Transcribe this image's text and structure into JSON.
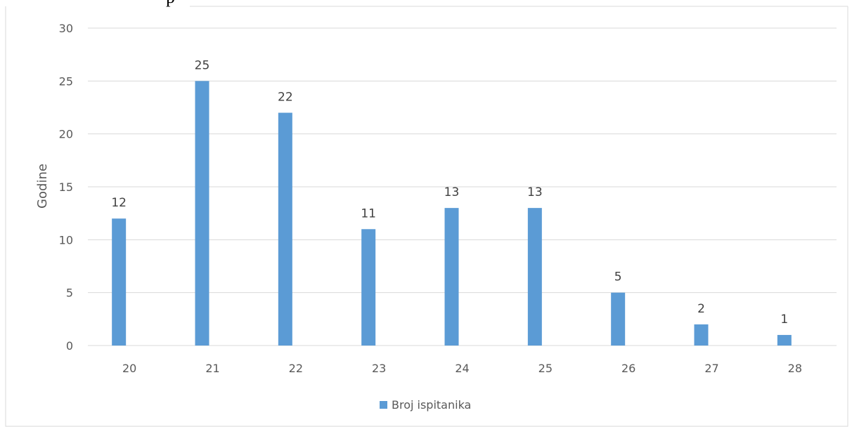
{
  "top_fragment_text": "p",
  "chart_data": {
    "type": "bar",
    "categories": [
      "20",
      "21",
      "22",
      "23",
      "24",
      "25",
      "26",
      "27",
      "28"
    ],
    "series": [
      {
        "name": "Broj ispitanika",
        "values": [
          12,
          25,
          22,
          11,
          13,
          13,
          5,
          2,
          1
        ],
        "color": "#5b9bd5"
      }
    ],
    "title": "",
    "xlabel": "",
    "ylabel": "Godine",
    "ylim": [
      0,
      30
    ],
    "yticks": [
      "0",
      "5",
      "10",
      "15",
      "20",
      "25",
      "30"
    ],
    "grid": true,
    "legend_position": "bottom"
  }
}
